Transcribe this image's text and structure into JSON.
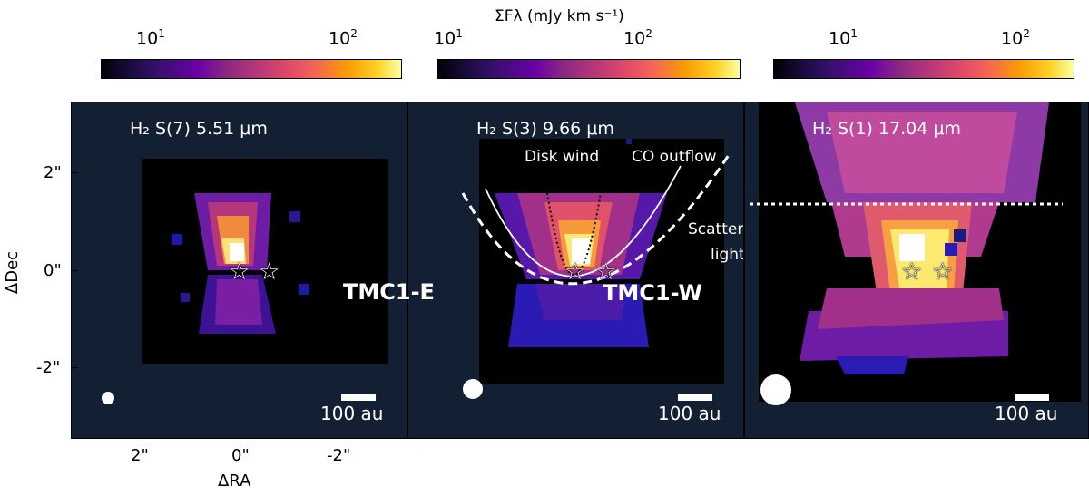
{
  "colorbar": {
    "title": "ΣFλ (mJy km s⁻¹)",
    "tick_labels": [
      "10",
      "10"
    ],
    "tick_exponents": [
      "1",
      "2"
    ]
  },
  "panels": [
    {
      "line_label": "H₂ S(7) 5.51 μm",
      "scale_label": "100 au"
    },
    {
      "line_label": "H₂ S(3) 9.66 μm",
      "scale_label": "100 au"
    },
    {
      "line_label": "H₂ S(1) 17.04 μm",
      "scale_label": "100 au"
    }
  ],
  "annotations": {
    "disk_wind": "Disk wind",
    "co_outflow": "CO outflow",
    "scattered_light_1": "Scattered",
    "scattered_light_2": "light",
    "source_east": "TMC1-E",
    "source_west": "TMC1-W"
  },
  "axes": {
    "ylabel": "ΔDec",
    "xlabel": "ΔRA",
    "y_ticks": [
      "2\"",
      "0\"",
      "-2\""
    ],
    "x_ticks": [
      "2\"",
      "0\"",
      "-2\""
    ]
  },
  "colors": {
    "background": "#131f33",
    "white": "#ffffff"
  }
}
